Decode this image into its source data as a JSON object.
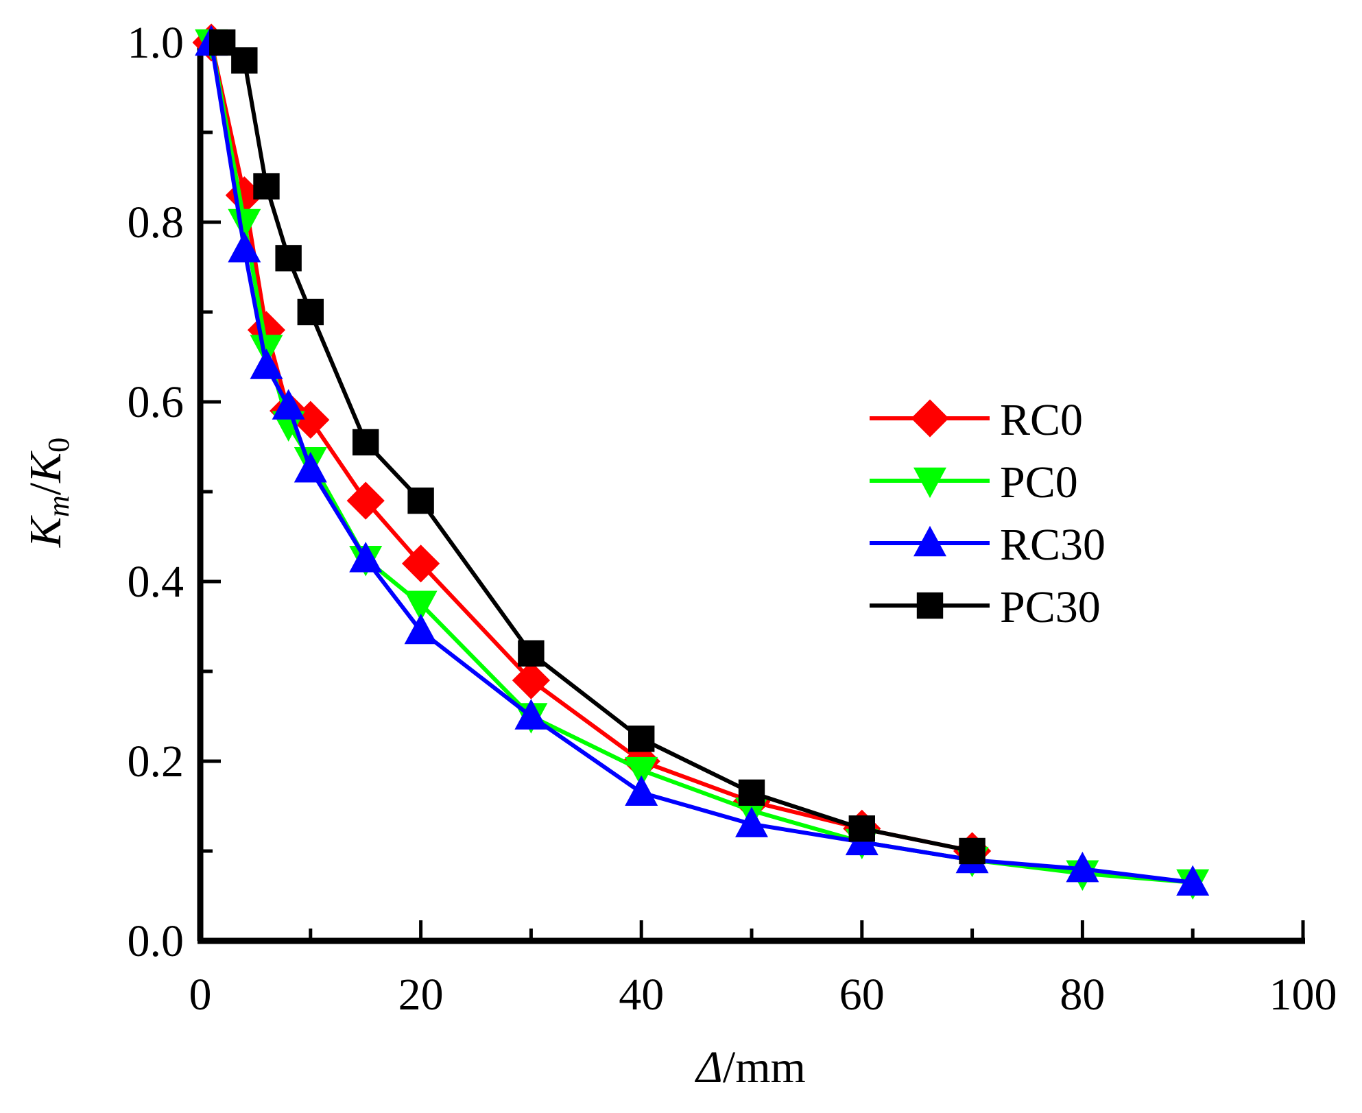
{
  "chart_data": {
    "type": "line",
    "title": "",
    "xlabel": "Δ/mm",
    "xlabel_parts": {
      "symbol": "Δ",
      "unit": "/mm"
    },
    "ylabel": "Km/K0",
    "ylabel_parts": {
      "main": "K",
      "sub1": "m",
      "sep": "/",
      "main2": "K",
      "sub2": "0"
    },
    "xlim": [
      0,
      100
    ],
    "ylim": [
      0.0,
      1.0
    ],
    "x_ticks": [
      0,
      20,
      40,
      60,
      80,
      100
    ],
    "x_tick_labels": [
      "0",
      "20",
      "40",
      "60",
      "80",
      "100"
    ],
    "x_minor_ticks": [
      10,
      30,
      50,
      70,
      90
    ],
    "y_ticks": [
      0.0,
      0.2,
      0.4,
      0.6,
      0.8,
      1.0
    ],
    "y_tick_labels": [
      "0.0",
      "0.2",
      "0.4",
      "0.6",
      "0.8",
      "1.0"
    ],
    "y_minor_ticks": [
      0.1,
      0.3,
      0.5,
      0.7,
      0.9
    ],
    "grid": false,
    "legend_position": "center-right",
    "series": [
      {
        "name": "RC0",
        "color": "#ff0000",
        "marker": "diamond",
        "x": [
          1,
          4,
          6,
          8,
          10,
          15,
          20,
          30,
          40,
          50,
          60,
          70
        ],
        "y": [
          1.0,
          0.83,
          0.68,
          0.59,
          0.58,
          0.49,
          0.42,
          0.29,
          0.2,
          0.155,
          0.125,
          0.1
        ]
      },
      {
        "name": "PC0",
        "color": "#00ff00",
        "marker": "triangle-down",
        "x": [
          1,
          4,
          6,
          8,
          10,
          15,
          20,
          30,
          40,
          50,
          60,
          70,
          80,
          90
        ],
        "y": [
          1.0,
          0.8,
          0.66,
          0.575,
          0.535,
          0.425,
          0.375,
          0.25,
          0.19,
          0.145,
          0.11,
          0.09,
          0.075,
          0.065
        ]
      },
      {
        "name": "RC30",
        "color": "#0000ff",
        "marker": "triangle-up",
        "x": [
          1,
          4,
          6,
          8,
          10,
          15,
          20,
          30,
          40,
          50,
          60,
          70,
          80,
          90
        ],
        "y": [
          1.0,
          0.77,
          0.64,
          0.595,
          0.525,
          0.425,
          0.345,
          0.25,
          0.165,
          0.13,
          0.11,
          0.09,
          0.08,
          0.065
        ]
      },
      {
        "name": "PC30",
        "color": "#000000",
        "marker": "square",
        "x": [
          2,
          4,
          6,
          8,
          10,
          15,
          20,
          30,
          40,
          50,
          60,
          70
        ],
        "y": [
          1.0,
          0.98,
          0.84,
          0.76,
          0.7,
          0.555,
          0.49,
          0.32,
          0.225,
          0.165,
          0.125,
          0.1
        ]
      }
    ]
  }
}
